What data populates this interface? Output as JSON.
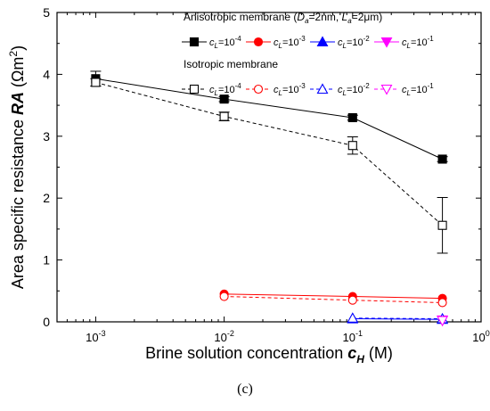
{
  "caption": "(c)",
  "chart_data": {
    "type": "line",
    "xscale": "log",
    "xlim": [
      0.0005,
      1
    ],
    "ylim": [
      0,
      5
    ],
    "xticks": [
      0.001,
      0.01,
      0.1,
      1
    ],
    "xtick_labels": [
      {
        "base": "10",
        "exp": "-3"
      },
      {
        "base": "10",
        "exp": "-2"
      },
      {
        "base": "10",
        "exp": "-1"
      },
      {
        "base": "10",
        "exp": "0"
      }
    ],
    "yticks": [
      0,
      1,
      2,
      3,
      4,
      5
    ],
    "ytick_labels": [
      "0",
      "1",
      "2",
      "3",
      "4",
      "5"
    ],
    "xlabel": {
      "text": "Brine solution concentration ",
      "var": "c",
      "sub": "H",
      "unit": " (M)"
    },
    "ylabel": {
      "text": "Area specific resistance ",
      "var": "RA",
      "unit_open": " (Ωm",
      "unit_sup": "2",
      "unit_close": ")"
    },
    "legend": {
      "groups": [
        {
          "title": {
            "pre": "Anisotropic membrane (",
            "d_var": "D",
            "d_sub": "a",
            "d_val": "=2nm, ",
            "l_var": "L",
            "l_sub": "a",
            "l_val": "=2μm)"
          },
          "entries": [
            "s1",
            "s2",
            "s3",
            "s4"
          ]
        },
        {
          "title": {
            "pre": "Isotropic membrane"
          },
          "entries": [
            "s5",
            "s6",
            "s7",
            "s8"
          ]
        }
      ]
    },
    "series": [
      {
        "id": "s1",
        "name": {
          "var": "c",
          "sub": "L",
          "val": "=10",
          "exp": "-4"
        },
        "color": "#000000",
        "marker": "square",
        "filled": true,
        "dashed": false,
        "points": [
          {
            "x": 0.001,
            "y": 3.93,
            "err": 0.12
          },
          {
            "x": 0.01,
            "y": 3.6,
            "err": 0.04
          },
          {
            "x": 0.1,
            "y": 3.3,
            "err": 0.04
          },
          {
            "x": 0.5,
            "y": 2.63,
            "err": 0.04
          }
        ]
      },
      {
        "id": "s2",
        "name": {
          "var": "c",
          "sub": "L",
          "val": "=10",
          "exp": "-3"
        },
        "color": "#ff0000",
        "marker": "circle",
        "filled": true,
        "dashed": false,
        "points": [
          {
            "x": 0.01,
            "y": 0.45
          },
          {
            "x": 0.1,
            "y": 0.41
          },
          {
            "x": 0.5,
            "y": 0.38
          }
        ]
      },
      {
        "id": "s3",
        "name": {
          "var": "c",
          "sub": "L",
          "val": "=10",
          "exp": "-2"
        },
        "color": "#0000ff",
        "marker": "triangle",
        "filled": true,
        "dashed": false,
        "points": [
          {
            "x": 0.1,
            "y": 0.05
          },
          {
            "x": 0.5,
            "y": 0.04
          }
        ]
      },
      {
        "id": "s4",
        "name": {
          "var": "c",
          "sub": "L",
          "val": "=10",
          "exp": "-1"
        },
        "color": "#ff00ff",
        "marker": "triangle-down",
        "filled": true,
        "dashed": false,
        "points": [
          {
            "x": 0.5,
            "y": 0.03
          }
        ]
      },
      {
        "id": "s5",
        "name": {
          "var": "c",
          "sub": "L",
          "val": "=10",
          "exp": "-4"
        },
        "color": "#000000",
        "marker": "square",
        "filled": false,
        "dashed": true,
        "points": [
          {
            "x": 0.001,
            "y": 3.87,
            "err": 0.06
          },
          {
            "x": 0.01,
            "y": 3.32,
            "err": 0.07
          },
          {
            "x": 0.1,
            "y": 2.85,
            "err": 0.14
          },
          {
            "x": 0.5,
            "y": 1.56,
            "err": 0.45
          }
        ]
      },
      {
        "id": "s6",
        "name": {
          "var": "c",
          "sub": "L",
          "val": "=10",
          "exp": "-3"
        },
        "color": "#ff0000",
        "marker": "circle",
        "filled": false,
        "dashed": true,
        "points": [
          {
            "x": 0.01,
            "y": 0.41
          },
          {
            "x": 0.1,
            "y": 0.35
          },
          {
            "x": 0.5,
            "y": 0.31
          }
        ]
      },
      {
        "id": "s7",
        "name": {
          "var": "c",
          "sub": "L",
          "val": "=10",
          "exp": "-2"
        },
        "color": "#0000ff",
        "marker": "triangle",
        "filled": false,
        "dashed": true,
        "points": [
          {
            "x": 0.1,
            "y": 0.06
          },
          {
            "x": 0.5,
            "y": 0.05
          }
        ]
      },
      {
        "id": "s8",
        "name": {
          "var": "c",
          "sub": "L",
          "val": "=10",
          "exp": "-1"
        },
        "color": "#ff00ff",
        "marker": "triangle-down",
        "filled": false,
        "dashed": true,
        "points": [
          {
            "x": 0.5,
            "y": 0.02
          }
        ]
      }
    ]
  }
}
